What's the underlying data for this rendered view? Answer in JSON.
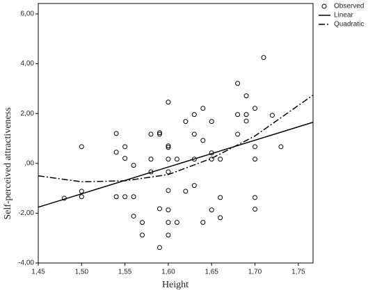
{
  "chart_data": {
    "type": "scatter",
    "x_label": "Height",
    "y_label": "Self-perceived attractiveness",
    "xlim": [
      1.45,
      1.767
    ],
    "ylim": [
      -4,
      6
    ],
    "xticks": [
      {
        "value": 1.45,
        "label": "1,45"
      },
      {
        "value": 1.5,
        "label": "1,50"
      },
      {
        "value": 1.55,
        "label": "1,55"
      },
      {
        "value": 1.6,
        "label": "1,60"
      },
      {
        "value": 1.65,
        "label": "1,65"
      },
      {
        "value": 1.7,
        "label": "1,70"
      },
      {
        "value": 1.75,
        "label": "1,75"
      }
    ],
    "yticks": [
      {
        "value": -4,
        "label": "-4,00"
      },
      {
        "value": -2,
        "label": "-2,00"
      },
      {
        "value": 0,
        "label": ",00"
      },
      {
        "value": 2,
        "label": "2,00"
      },
      {
        "value": 4,
        "label": "4,00"
      },
      {
        "value": 6,
        "label": "6,00"
      }
    ],
    "legend": "outside-top-right",
    "series": [
      {
        "name": "Observed",
        "kind": "points",
        "color": "#000000",
        "x": [
          1.48,
          1.5,
          1.5,
          1.5,
          1.54,
          1.54,
          1.54,
          1.55,
          1.55,
          1.55,
          1.56,
          1.56,
          1.56,
          1.57,
          1.57,
          1.58,
          1.58,
          1.58,
          1.59,
          1.59,
          1.59,
          1.59,
          1.6,
          1.6,
          1.6,
          1.6,
          1.6,
          1.6,
          1.6,
          1.6,
          1.6,
          1.61,
          1.61,
          1.62,
          1.62,
          1.63,
          1.63,
          1.63,
          1.63,
          1.64,
          1.64,
          1.64,
          1.65,
          1.65,
          1.65,
          1.65,
          1.66,
          1.66,
          1.66,
          1.68,
          1.68,
          1.68,
          1.69,
          1.69,
          1.69,
          1.7,
          1.7,
          1.7,
          1.7,
          1.7,
          1.71,
          1.72,
          1.73
        ],
        "values": [
          -1.4,
          0.67,
          -1.12,
          -1.34,
          1.2,
          0.45,
          -1.34,
          0.67,
          0.2,
          -1.34,
          -0.08,
          -1.34,
          -2.12,
          -2.37,
          -2.88,
          1.17,
          0.17,
          -0.34,
          1.23,
          1.17,
          -1.82,
          -3.38,
          2.46,
          0.7,
          0.64,
          0.17,
          -0.34,
          -1.09,
          -1.87,
          -2.37,
          -2.88,
          0.17,
          -2.37,
          1.68,
          -1.12,
          1.96,
          1.17,
          0.17,
          -0.89,
          2.21,
          0.92,
          -2.37,
          1.68,
          0.42,
          0.17,
          -1.87,
          0.17,
          -1.37,
          -2.18,
          3.21,
          1.96,
          1.17,
          2.71,
          1.96,
          1.7,
          2.21,
          0.67,
          0.17,
          -1.37,
          -1.84,
          4.25,
          1.93,
          0.67
        ]
      },
      {
        "name": "Linear",
        "kind": "line",
        "dash": "solid",
        "color": "#000000",
        "x": [
          1.45,
          1.767
        ],
        "values": [
          -1.76,
          1.65
        ]
      },
      {
        "name": "Quadratic",
        "kind": "line",
        "dash": "dash-dot",
        "color": "#000000",
        "x": [
          1.45,
          1.5,
          1.55,
          1.6,
          1.65,
          1.7,
          1.767
        ],
        "values": [
          -0.5,
          -0.74,
          -0.7,
          -0.45,
          0.2,
          1.1,
          2.74
        ]
      }
    ]
  }
}
